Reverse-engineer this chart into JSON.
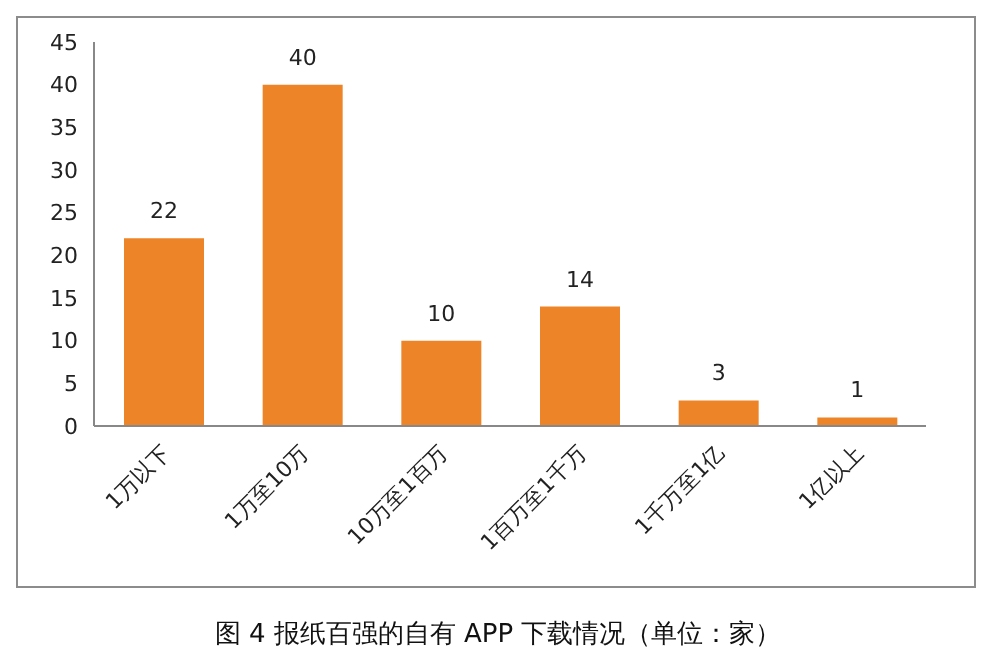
{
  "chart_data": {
    "type": "bar",
    "title": "图 4 报纸百强的自有 APP 下载情况（单位：家）",
    "categories": [
      "1万以下",
      "1万至10万",
      "10万至1百万",
      "1百万至1千万",
      "1千万至1亿",
      "1亿以上"
    ],
    "values": [
      22,
      40,
      10,
      14,
      3,
      1
    ],
    "color": "#ee8428",
    "ylim": [
      0,
      45
    ],
    "yticks": [
      0,
      5,
      10,
      15,
      20,
      25,
      30,
      35,
      40,
      45
    ],
    "grid": false,
    "legend": false,
    "data_labels": true
  }
}
